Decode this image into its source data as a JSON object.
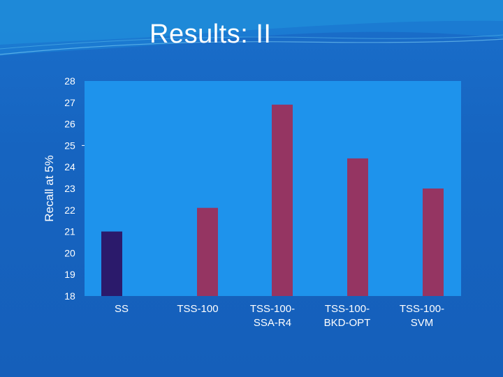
{
  "slide": {
    "title": "Results: II",
    "colors": {
      "background": "#1766c4",
      "plot_area": "#1e93ec",
      "accent_bar": "#2b1a6b",
      "bar": "#953562"
    }
  },
  "chart_data": {
    "type": "bar",
    "title": "",
    "xlabel": "",
    "ylabel": "Recall at 5%",
    "ylim": [
      18,
      28
    ],
    "yticks": [
      18,
      19,
      20,
      21,
      22,
      23,
      24,
      25,
      26,
      27,
      28
    ],
    "categories": [
      [
        "SS"
      ],
      [
        "TSS-100"
      ],
      [
        "TSS-100-",
        "SSA-R4"
      ],
      [
        "TSS-100-",
        "BKD-OPT"
      ],
      [
        "TSS-100-",
        "SVM"
      ]
    ],
    "values": [
      21.0,
      22.1,
      26.9,
      24.4,
      23.0
    ],
    "bar_colors": [
      "#2b1a6b",
      "#953562",
      "#953562",
      "#953562",
      "#953562"
    ],
    "grid": false,
    "legend": "none"
  }
}
